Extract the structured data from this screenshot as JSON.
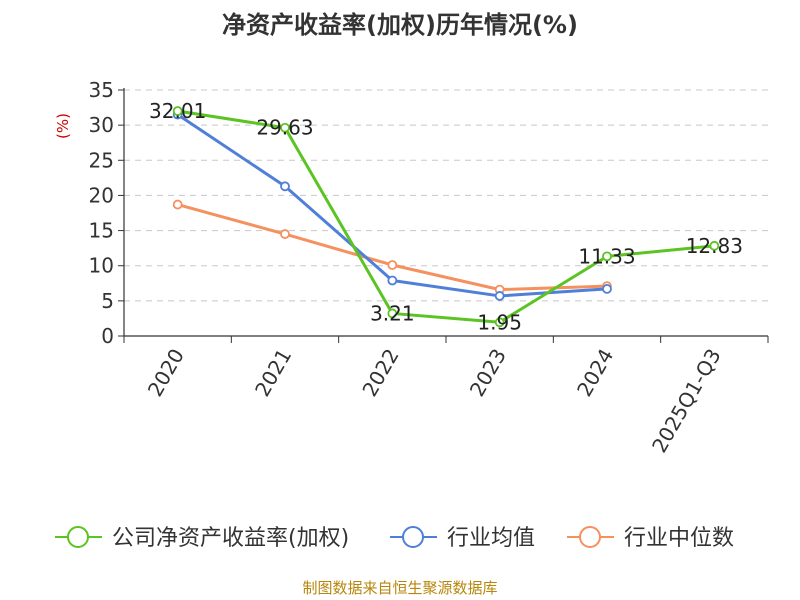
{
  "chart_data": {
    "type": "line",
    "title": "净资产收益率(加权)历年情况(%)",
    "ylabel": "(%)",
    "xlabel": "",
    "categories": [
      "2020",
      "2021",
      "2022",
      "2023",
      "2024",
      "2025Q1-Q3"
    ],
    "ylim": [
      0,
      35
    ],
    "yticks": [
      0,
      5,
      10,
      15,
      20,
      25,
      30,
      35
    ],
    "grid": true,
    "legend_position": "bottom",
    "series": [
      {
        "name": "公司净资产收益率(加权)",
        "color": "#5bc423",
        "values": [
          32.01,
          29.63,
          3.21,
          1.95,
          11.33,
          12.83
        ],
        "labels": [
          "32.01",
          "29.63",
          "3.21",
          "1.95",
          "11.33",
          "12.83"
        ]
      },
      {
        "name": "行业均值",
        "color": "#4f7fd8",
        "values": [
          31.5,
          21.3,
          7.9,
          5.7,
          6.7,
          null
        ]
      },
      {
        "name": "行业中位数",
        "color": "#f5905f",
        "values": [
          18.7,
          14.5,
          10.1,
          6.6,
          7.1,
          null
        ]
      }
    ]
  },
  "footer": "制图数据来自恒生聚源数据库"
}
